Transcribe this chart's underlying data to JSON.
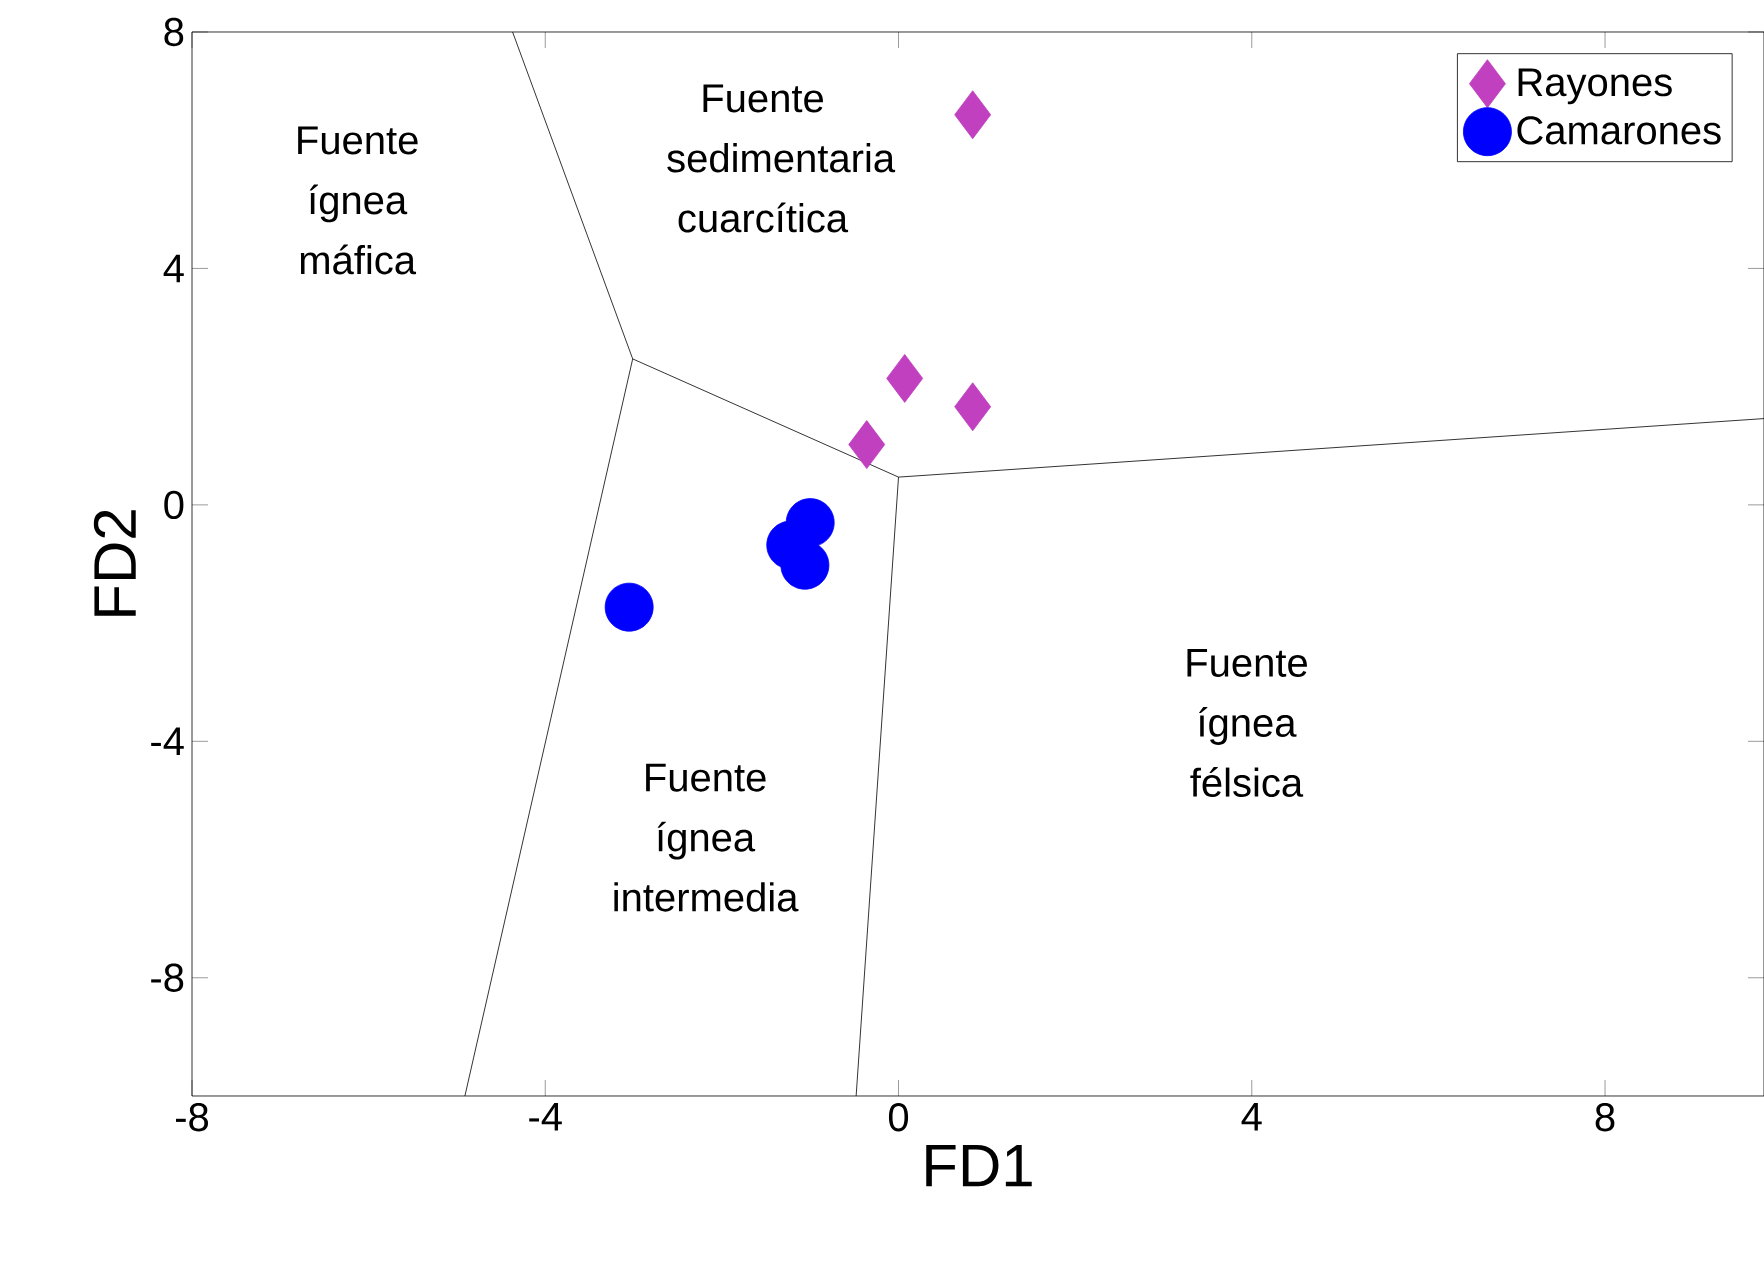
{
  "chart_data": {
    "type": "scatter",
    "xlabel": "FD1",
    "ylabel": "FD2",
    "xlim": [
      -8,
      9.8
    ],
    "ylim": [
      -10,
      8
    ],
    "xticks": [
      -8,
      -4,
      0,
      4,
      8
    ],
    "yticks": [
      -8,
      -4,
      0,
      4,
      8
    ],
    "grid": false,
    "legend": "top right",
    "annotations": [
      "Fuente ígnea máfica",
      "Fuente sedimentaria cuarcítica",
      "Fuente ígnea intermedia",
      "Fuente ígnea félsica"
    ],
    "series": [
      {
        "type": "line",
        "color": "#000000",
        "marker": "none",
        "x": [
          -4.37,
          -3.01
        ],
        "values": [
          8,
          2.47
        ]
      },
      {
        "type": "line",
        "color": "#000000",
        "marker": "none",
        "x": [
          -3.01,
          0
        ],
        "values": [
          2.47,
          0.47
        ]
      },
      {
        "type": "line",
        "color": "#000000",
        "marker": "none",
        "x": [
          0,
          9.8
        ],
        "values": [
          0.47,
          1.46
        ]
      },
      {
        "type": "line",
        "color": "#000000",
        "marker": "none",
        "x": [
          -3.01,
          -4.91
        ],
        "values": [
          2.47,
          -10
        ]
      },
      {
        "type": "line",
        "color": "#000000",
        "marker": "none",
        "x": [
          0,
          -0.48
        ],
        "values": [
          0.47,
          -10
        ]
      },
      {
        "name": "Rayones",
        "color": "#c040c0",
        "marker": "diamond",
        "x": [
          0.84,
          0.07,
          0.84,
          -0.36
        ],
        "values": [
          6.6,
          2.14,
          1.66,
          1.02
        ]
      },
      {
        "name": "Camarones",
        "color": "#0000ff",
        "marker": "circle",
        "x": [
          -3.05,
          -1.0,
          -1.22,
          -1.06
        ],
        "values": [
          -1.73,
          -0.3,
          -0.68,
          -1.02
        ]
      }
    ]
  }
}
